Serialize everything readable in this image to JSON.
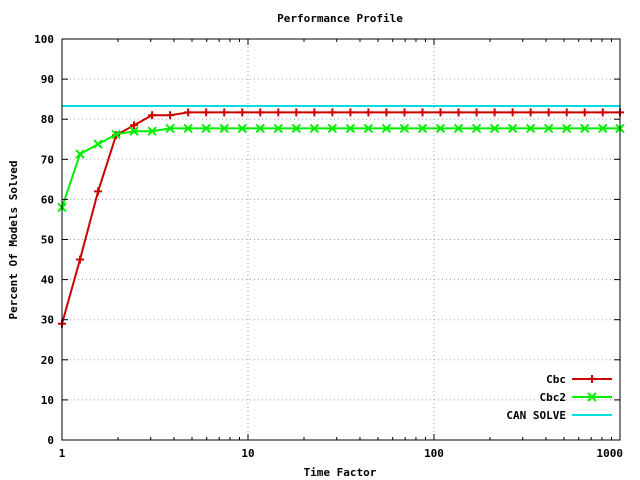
{
  "chart_data": {
    "type": "line",
    "title": "Performance Profile",
    "xlabel": "Time Factor",
    "ylabel": "Percent Of Models Solved",
    "xscale": "log",
    "xlim": [
      1,
      1000
    ],
    "ylim": [
      0,
      100
    ],
    "x_ticks": [
      1,
      10,
      100,
      1000
    ],
    "x_tick_labels": [
      "1",
      "10",
      "100",
      "1000"
    ],
    "y_ticks": [
      0,
      10,
      20,
      30,
      40,
      50,
      60,
      70,
      80,
      90,
      100
    ],
    "y_tick_labels": [
      "0",
      "10",
      "20",
      "30",
      "40",
      "50",
      "60",
      "70",
      "80",
      "90",
      "100"
    ],
    "grid": true,
    "legend_position": "bottom-right",
    "series": [
      {
        "name": "Cbc",
        "color": "#cc0000",
        "marker": "plus",
        "x": [
          1,
          1.25,
          1.5625,
          1.953,
          2.441,
          3.052,
          3.815,
          4.768,
          5.96,
          7.451,
          9.313,
          11.64,
          14.55,
          18.19,
          22.74,
          28.42,
          35.53,
          44.41,
          55.51,
          69.39,
          86.74,
          108.4,
          135.5,
          169.4,
          211.8,
          264.7,
          330.9,
          413.6,
          517.0,
          646.2,
          807.8,
          1000
        ],
        "y": [
          29,
          45,
          62,
          76,
          78.5,
          81,
          81,
          81.7,
          81.7,
          81.7,
          81.7,
          81.7,
          81.7,
          81.7,
          81.7,
          81.7,
          81.7,
          81.7,
          81.7,
          81.7,
          81.7,
          81.7,
          81.7,
          81.7,
          81.7,
          81.7,
          81.7,
          81.7,
          81.7,
          81.7,
          81.7,
          81.7
        ]
      },
      {
        "name": "Cbc2",
        "color": "#00ee00",
        "marker": "cross",
        "x": [
          1,
          1.25,
          1.5625,
          1.953,
          2.441,
          3.052,
          3.815,
          4.768,
          5.96,
          7.451,
          9.313,
          11.64,
          14.55,
          18.19,
          22.74,
          28.42,
          35.53,
          44.41,
          55.51,
          69.39,
          86.74,
          108.4,
          135.5,
          169.4,
          211.8,
          264.7,
          330.9,
          413.6,
          517.0,
          646.2,
          807.8,
          1000
        ],
        "y": [
          58,
          71.3,
          73.8,
          76.2,
          77,
          77,
          77.7,
          77.7,
          77.7,
          77.7,
          77.7,
          77.7,
          77.7,
          77.7,
          77.7,
          77.7,
          77.7,
          77.7,
          77.7,
          77.7,
          77.7,
          77.7,
          77.7,
          77.7,
          77.7,
          77.7,
          77.7,
          77.7,
          77.7,
          77.7,
          77.7,
          77.7
        ]
      },
      {
        "name": "CAN SOLVE",
        "color": "#00dddd",
        "marker": "none",
        "x": [
          1,
          1000
        ],
        "y": [
          83.3,
          83.3
        ]
      }
    ]
  }
}
